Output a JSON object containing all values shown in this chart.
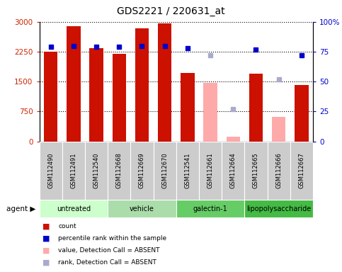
{
  "title": "GDS2221 / 220631_at",
  "samples": [
    "GSM112490",
    "GSM112491",
    "GSM112540",
    "GSM112668",
    "GSM112669",
    "GSM112670",
    "GSM112541",
    "GSM112661",
    "GSM112664",
    "GSM112665",
    "GSM112666",
    "GSM112667"
  ],
  "count_values": [
    2250,
    2880,
    2330,
    2190,
    2840,
    2960,
    1720,
    null,
    null,
    1700,
    null,
    1420
  ],
  "count_absent": [
    null,
    null,
    null,
    null,
    null,
    null,
    null,
    1460,
    110,
    null,
    620,
    null
  ],
  "percentile_present": [
    79,
    80,
    79,
    79,
    80,
    80,
    78,
    null,
    null,
    77,
    null,
    72
  ],
  "percentile_absent": [
    null,
    null,
    null,
    null,
    null,
    null,
    null,
    72,
    27,
    null,
    52,
    null
  ],
  "groups": [
    {
      "label": "untreated",
      "start": 0,
      "end": 3,
      "color": "#ccffcc"
    },
    {
      "label": "vehicle",
      "start": 3,
      "end": 6,
      "color": "#aaddaa"
    },
    {
      "label": "galectin-1",
      "start": 6,
      "end": 9,
      "color": "#66cc66"
    },
    {
      "label": "lipopolysaccharide",
      "start": 9,
      "end": 12,
      "color": "#44bb44"
    }
  ],
  "ylim_left": [
    0,
    3000
  ],
  "ylim_right": [
    0,
    100
  ],
  "yticks_left": [
    0,
    750,
    1500,
    2250,
    3000
  ],
  "ytick_labels_left": [
    "0",
    "750",
    "1500",
    "2250",
    "3000"
  ],
  "yticks_right": [
    0,
    25,
    50,
    75,
    100
  ],
  "ytick_labels_right": [
    "0",
    "25",
    "50",
    "75",
    "100%"
  ],
  "bar_color_present": "#cc1100",
  "bar_color_absent": "#ffaaaa",
  "dot_color_present": "#0000cc",
  "dot_color_absent": "#aaaacc",
  "sample_bg_color": "#cccccc",
  "legend_items": [
    {
      "color": "#cc1100",
      "label": "count"
    },
    {
      "color": "#0000cc",
      "label": "percentile rank within the sample"
    },
    {
      "color": "#ffaaaa",
      "label": "value, Detection Call = ABSENT"
    },
    {
      "color": "#aaaacc",
      "label": "rank, Detection Call = ABSENT"
    }
  ]
}
